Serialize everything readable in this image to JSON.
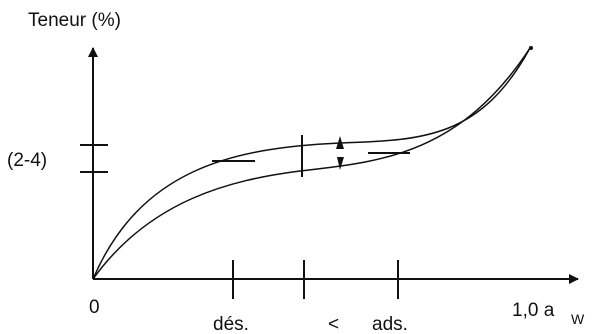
{
  "y_axis": {
    "label": "Teneur (%)"
  },
  "x_axis": {
    "origin_label": "0",
    "end_value": "1,0 a",
    "end_subscript": "W"
  },
  "y_range_label": "(2-4)",
  "x_labels": {
    "desorption": "dés.",
    "comparison": "<",
    "adsorption": "ads."
  },
  "curves": [
    "desorption",
    "adsorption"
  ],
  "colors": {
    "stroke": "#111111",
    "background": "#ffffff"
  }
}
